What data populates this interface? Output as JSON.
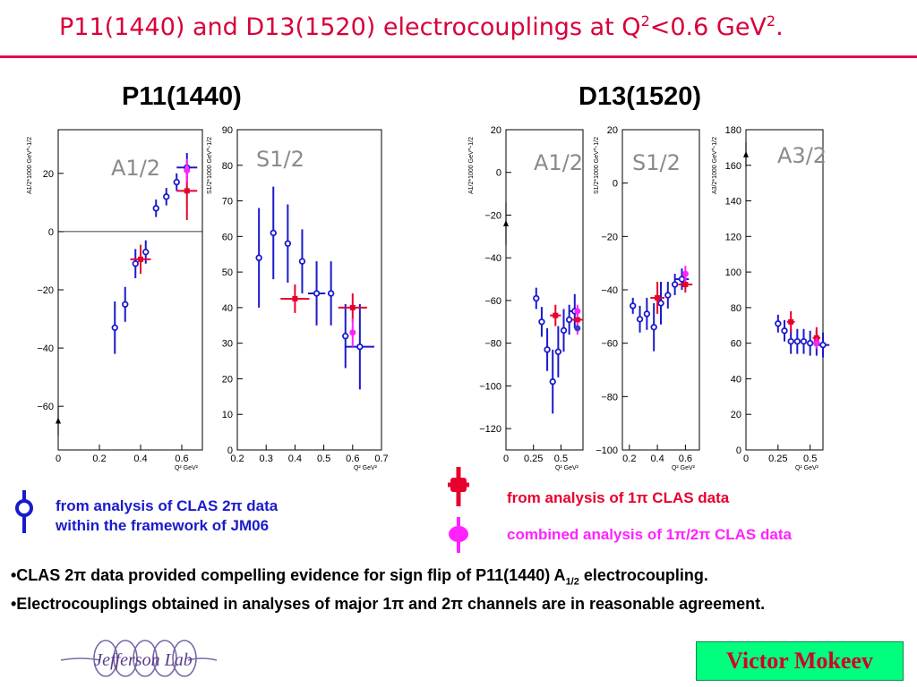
{
  "slide": {
    "title_main": "P11(1440) and D13(1520) electrocouplings at Q",
    "title_sup1": "2",
    "title_mid": "<0.6 GeV",
    "title_sup2": "2",
    "title_end": ".",
    "heading_left": "P11(1440)",
    "heading_right": "D13(1520)",
    "legend": {
      "clas2pi_line1": "from analysis of  CLAS 2π data",
      "clas2pi_line2": "within the framework of JM06",
      "onepi": "from analysis of 1π CLAS data",
      "combined": "combined  analysis of 1π/2π  CLAS data"
    },
    "bullet1_a": "•CLAS 2π data provided compelling evidence for sign flip of P11(1440) A",
    "bullet1_sub": "1/2",
    "bullet1_b": " electrocoupling.",
    "bullet2": "•Electrocouplings obtained in analyses of  major 1π and 2π channels are in reasonable agreement.",
    "author": "Victor Mokeev",
    "logo_text": "Jefferson Lab"
  },
  "colors": {
    "title": "#d8003a",
    "clas2pi": "#1a1acc",
    "onepi": "#e8002d",
    "combined": "#ff22ff",
    "author_bg": "#00ff7f"
  },
  "chart_data": [
    {
      "type": "scatter",
      "title": "A1/2",
      "ylabel": "A1/2*1000 GeV^-1/2",
      "xlabel": "Q² GeV²",
      "xlim": [
        0,
        0.7
      ],
      "ylim": [
        -75,
        35
      ],
      "xticks": [
        0,
        0.2,
        0.4,
        0.6
      ],
      "xtick_labels": [
        "0",
        "0.2",
        "0.4",
        "0.6"
      ],
      "yticks": [
        -60,
        -40,
        -20,
        0,
        20
      ],
      "ytick_labels": [
        "−60",
        "−40",
        "−20",
        "0",
        "20"
      ],
      "zero_line": true,
      "series": [
        {
          "key": "clas2pi",
          "x": [
            0.275,
            0.325,
            0.375,
            0.425,
            0.475,
            0.525,
            0.575,
            0.625
          ],
          "y": [
            -33,
            -25,
            -11,
            -7,
            8,
            12,
            17,
            22
          ],
          "err": [
            9,
            6,
            5,
            4,
            3,
            3,
            3,
            5
          ],
          "xerr": [
            0,
            0,
            0,
            0,
            0,
            0,
            0,
            0.05
          ]
        },
        {
          "key": "onepi",
          "x": [
            0.4,
            0.625
          ],
          "y": [
            -9.5,
            14
          ],
          "err": [
            5,
            10
          ],
          "xerr": [
            0.05,
            0.05
          ]
        },
        {
          "key": "combined",
          "x": [
            0.625
          ],
          "y": [
            21
          ],
          "err": [
            4
          ],
          "xerr": [
            0
          ]
        },
        {
          "key": "photo",
          "x": [
            0
          ],
          "y": [
            -65
          ],
          "err": [
            5
          ],
          "xerr": [
            0
          ]
        }
      ]
    },
    {
      "type": "scatter",
      "title": "S1/2",
      "ylabel": "S1/2*1000 GeV^-1/2",
      "xlabel": "Q² GeV²",
      "xlim": [
        0.2,
        0.7
      ],
      "ylim": [
        0,
        90
      ],
      "xticks": [
        0.2,
        0.3,
        0.4,
        0.5,
        0.6,
        0.7
      ],
      "xtick_labels": [
        "0.2",
        "0.3",
        "0.4",
        "0.5",
        "0.6",
        "0.7"
      ],
      "yticks": [
        0,
        10,
        20,
        30,
        40,
        50,
        60,
        70,
        80,
        90
      ],
      "ytick_labels": [
        "0",
        "10",
        "20",
        "30",
        "40",
        "50",
        "60",
        "70",
        "80",
        "90"
      ],
      "series": [
        {
          "key": "clas2pi",
          "x": [
            0.275,
            0.325,
            0.375,
            0.425,
            0.475,
            0.525,
            0.575,
            0.625
          ],
          "y": [
            54,
            61,
            58,
            53,
            44,
            44,
            32,
            29
          ],
          "err": [
            14,
            13,
            11,
            9,
            9,
            9,
            9,
            12
          ],
          "xerr": [
            0,
            0,
            0,
            0,
            0.03,
            0,
            0,
            0.05
          ]
        },
        {
          "key": "onepi",
          "x": [
            0.4,
            0.6
          ],
          "y": [
            42.5,
            40
          ],
          "err": [
            4,
            4
          ],
          "xerr": [
            0.05,
            0.05
          ]
        },
        {
          "key": "combined",
          "x": [
            0.6
          ],
          "y": [
            33
          ],
          "err": [
            4
          ],
          "xerr": [
            0
          ]
        }
      ]
    },
    {
      "type": "scatter",
      "title": "A1/2",
      "ylabel": "A1/2*1000 GeV^-1/2",
      "xlabel": "Q² GeV²",
      "xlim": [
        0,
        0.7
      ],
      "ylim": [
        -130,
        20
      ],
      "xticks": [
        0,
        0.25,
        0.5
      ],
      "xtick_labels": [
        "0",
        "0.25",
        "0.5"
      ],
      "yticks": [
        -120,
        -100,
        -80,
        -60,
        -40,
        -20,
        0,
        20
      ],
      "ytick_labels": [
        "−120",
        "−100",
        "−80",
        "−60",
        "−40",
        "−20",
        "0",
        "20"
      ],
      "series": [
        {
          "key": "clas2pi",
          "x": [
            0.275,
            0.325,
            0.375,
            0.425,
            0.475,
            0.525,
            0.575,
            0.625
          ],
          "y": [
            -59,
            -70,
            -83,
            -98,
            -84,
            -74,
            -69,
            -65
          ],
          "err": [
            5,
            7,
            10,
            15,
            12,
            10,
            7,
            8
          ],
          "xerr": [
            0,
            0,
            0,
            0,
            0,
            0,
            0,
            0.05
          ]
        },
        {
          "key": "onepi",
          "x": [
            0.45,
            0.65
          ],
          "y": [
            -67,
            -69
          ],
          "err": [
            5,
            5
          ],
          "xerr": [
            0.05,
            0.05
          ]
        },
        {
          "key": "combined",
          "x": [
            0.65,
            0.65
          ],
          "y": [
            -65,
            -73
          ],
          "err": [
            3,
            3
          ],
          "xerr": [
            0,
            0
          ]
        },
        {
          "key": "photo",
          "x": [
            0
          ],
          "y": [
            -24
          ],
          "err": [
            10
          ],
          "xerr": [
            0
          ]
        }
      ]
    },
    {
      "type": "scatter",
      "title": "S1/2",
      "ylabel": "S1/2*1000 GeV^-1/2",
      "xlabel": "Q² GeV²",
      "xlim": [
        0.15,
        0.7
      ],
      "ylim": [
        -100,
        20
      ],
      "xticks": [
        0.2,
        0.4,
        0.6
      ],
      "xtick_labels": [
        "0.2",
        "0.4",
        "0.6"
      ],
      "yticks": [
        -100,
        -80,
        -60,
        -40,
        -20,
        0,
        20
      ],
      "ytick_labels": [
        "−100",
        "−80",
        "−60",
        "−40",
        "−20",
        "0",
        "20"
      ],
      "series": [
        {
          "key": "clas2pi",
          "x": [
            0.225,
            0.275,
            0.325,
            0.375,
            0.425,
            0.475,
            0.525,
            0.575
          ],
          "y": [
            -46,
            -51,
            -49,
            -54,
            -45,
            -42,
            -38,
            -36
          ],
          "err": [
            3,
            5,
            6,
            9,
            8,
            5,
            4,
            4
          ],
          "xerr": [
            0,
            0,
            0,
            0,
            0,
            0,
            0,
            0.05
          ]
        },
        {
          "key": "onepi",
          "x": [
            0.4,
            0.6
          ],
          "y": [
            -43,
            -38
          ],
          "err": [
            6,
            3
          ],
          "xerr": [
            0.05,
            0.05
          ]
        },
        {
          "key": "combined",
          "x": [
            0.6
          ],
          "y": [
            -34
          ],
          "err": [
            3
          ],
          "xerr": [
            0
          ]
        }
      ]
    },
    {
      "type": "scatter",
      "title": "A3/2",
      "ylabel": "A3/2*1000 GeV^-1/2",
      "xlabel": "Q² GeV²",
      "xlim": [
        0,
        0.6
      ],
      "ylim": [
        0,
        180
      ],
      "xticks": [
        0,
        0.25,
        0.5
      ],
      "xtick_labels": [
        "0",
        "0.25",
        "0.5"
      ],
      "yticks": [
        0,
        20,
        40,
        60,
        80,
        100,
        120,
        140,
        160,
        180
      ],
      "ytick_labels": [
        "0",
        "20",
        "40",
        "60",
        "80",
        "100",
        "120",
        "140",
        "160",
        "180"
      ],
      "series": [
        {
          "key": "clas2pi",
          "x": [
            0.25,
            0.3,
            0.35,
            0.4,
            0.45,
            0.5,
            0.55,
            0.6
          ],
          "y": [
            71,
            67,
            61,
            61,
            61,
            60,
            60,
            59
          ],
          "err": [
            5,
            6,
            7,
            7,
            7,
            7,
            7,
            7
          ],
          "xerr": [
            0,
            0,
            0,
            0,
            0,
            0,
            0,
            0.05
          ]
        },
        {
          "key": "onepi",
          "x": [
            0.35,
            0.55
          ],
          "y": [
            72,
            63
          ],
          "err": [
            6,
            6
          ],
          "xerr": [
            0.03,
            0.03
          ]
        },
        {
          "key": "combined",
          "x": [
            0.55
          ],
          "y": [
            60
          ],
          "err": [
            3
          ],
          "xerr": [
            0
          ]
        },
        {
          "key": "photo",
          "x": [
            0
          ],
          "y": [
            166
          ],
          "err": [
            7
          ],
          "xerr": [
            0
          ]
        }
      ]
    }
  ]
}
